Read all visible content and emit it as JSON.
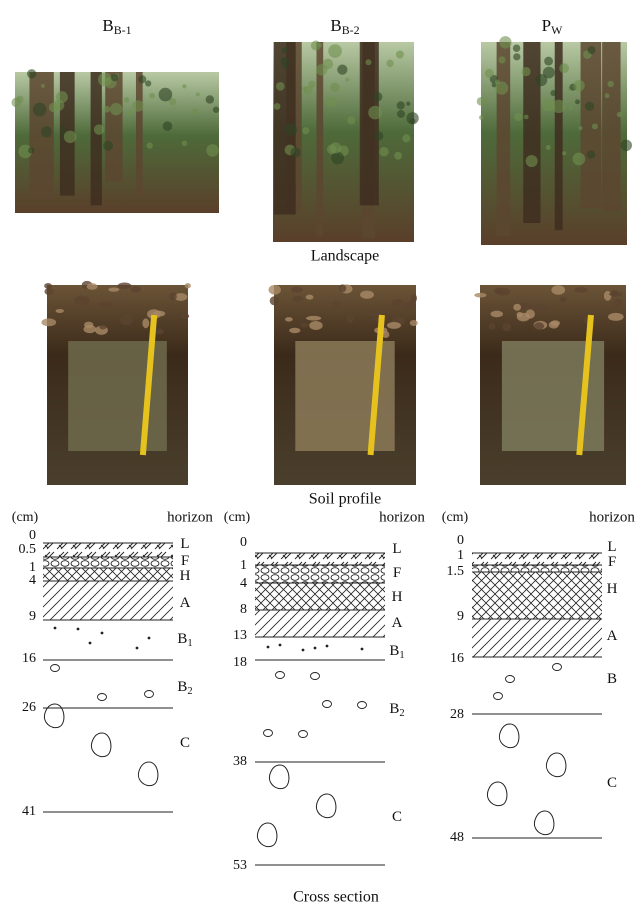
{
  "columns": [
    {
      "main": "B",
      "sub": "B-1"
    },
    {
      "main": "B",
      "sub": "B-2"
    },
    {
      "main": "P",
      "sub": "W"
    }
  ],
  "captions": {
    "landscape": "Landscape",
    "soil_profile": "Soil profile",
    "cross_section": "Cross section"
  },
  "cross_sections": [
    {
      "unit": "(cm)",
      "horizon_header": "horizon",
      "depths": [
        "0",
        "0.5",
        "1",
        "4",
        "9",
        "16",
        "26",
        "41"
      ],
      "horizons": [
        {
          "main": "L"
        },
        {
          "main": "F"
        },
        {
          "main": "H"
        },
        {
          "main": "A"
        },
        {
          "main": "B",
          "sub": "1"
        },
        {
          "main": "B",
          "sub": "2"
        },
        {
          "main": "C"
        }
      ]
    },
    {
      "unit": "(cm)",
      "horizon_header": "horizon",
      "depths": [
        "0",
        "1",
        "4",
        "8",
        "13",
        "18",
        "38",
        "53"
      ],
      "horizons": [
        {
          "main": "L"
        },
        {
          "main": "F"
        },
        {
          "main": "H"
        },
        {
          "main": "A"
        },
        {
          "main": "B",
          "sub": "1"
        },
        {
          "main": "B",
          "sub": "2"
        },
        {
          "main": "C"
        }
      ]
    },
    {
      "unit": "(cm)",
      "horizon_header": "horizon",
      "depths": [
        "0",
        "1",
        "1.5",
        "9",
        "16",
        "28",
        "48"
      ],
      "horizons": [
        {
          "main": "L"
        },
        {
          "main": "F"
        },
        {
          "main": "H"
        },
        {
          "main": "A"
        },
        {
          "main": "B"
        },
        {
          "main": "C"
        }
      ]
    }
  ]
}
